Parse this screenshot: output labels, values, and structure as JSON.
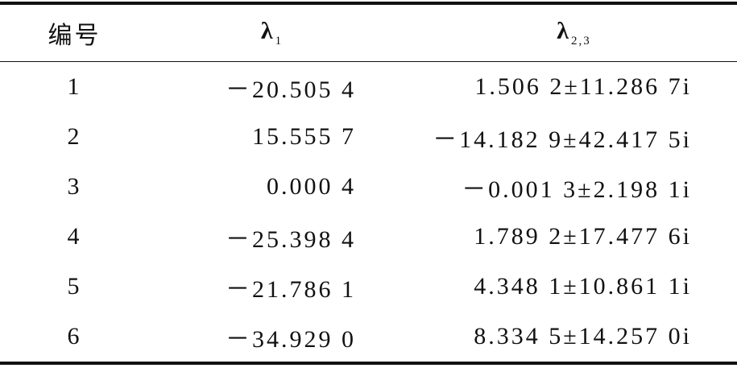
{
  "table": {
    "header": [
      {
        "symbol": "编号"
      },
      {
        "symbol": "λ",
        "subscript": "1"
      },
      {
        "symbol": "λ",
        "subscript": "2,3"
      }
    ],
    "rows": [
      [
        "1",
        "－20.505 4",
        "1.506 2±11.286 7i"
      ],
      [
        "2",
        "15.555 7",
        "－14.182 9±42.417 5i"
      ],
      [
        "3",
        "0.000 4",
        "－0.001 3±2.198 1i"
      ],
      [
        "4",
        "－25.398 4",
        "1.789 2±17.477 6i"
      ],
      [
        "5",
        "－21.786 1",
        "4.348 1±10.861 1i"
      ],
      [
        "6",
        "－34.929 0",
        "8.334 5±14.257 0i"
      ]
    ]
  }
}
